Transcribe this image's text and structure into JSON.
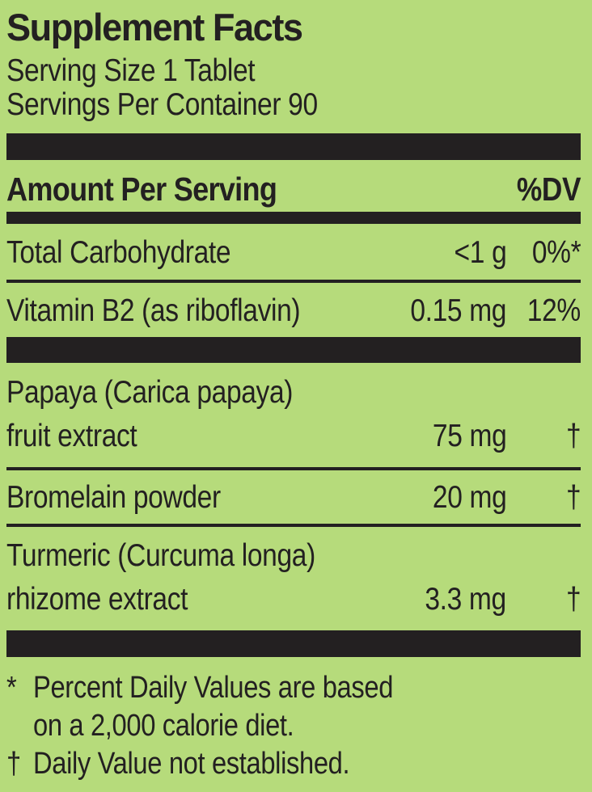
{
  "label": {
    "title": "Supplement Facts",
    "serving_size": "Serving Size 1 Tablet",
    "servings_per_container": "Servings Per Container 90",
    "header": {
      "amount_per_serving": "Amount Per Serving",
      "dv": "%DV"
    },
    "rows": [
      {
        "name": "Total Carbohydrate",
        "amount": "<1 g",
        "dv": "0%*"
      },
      {
        "name": "Vitamin B2 (as riboflavin)",
        "amount": "0.15 mg",
        "dv": "12%"
      },
      {
        "name": "Papaya (Carica papaya)",
        "name2": "fruit extract",
        "amount": "75 mg",
        "dv": "†"
      },
      {
        "name": "Bromelain powder",
        "amount": "20 mg",
        "dv": "†"
      },
      {
        "name": "Turmeric (Curcuma longa)",
        "name2": "rhizome extract",
        "amount": "3.3 mg",
        "dv": "†"
      }
    ],
    "footnotes": [
      {
        "marker": "*",
        "lines": [
          "Percent Daily Values are based",
          "on a 2,000 calorie diet."
        ]
      },
      {
        "marker": "†",
        "lines": [
          "Daily Value not established."
        ]
      }
    ],
    "colors": {
      "background": "#b6db7b",
      "ink": "#232021"
    }
  }
}
